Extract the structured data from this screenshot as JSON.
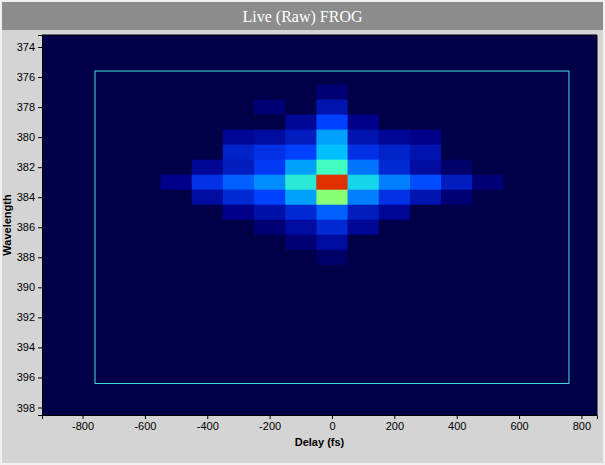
{
  "chart_data": {
    "type": "heatmap",
    "title": "Live (Raw) FROG",
    "xlabel": "Delay (fs)",
    "ylabel": "Wavelength",
    "xlim": [
      -930,
      850
    ],
    "ylim": [
      373.2,
      398.5
    ],
    "xticks": [
      -800,
      -600,
      -400,
      -200,
      0,
      200,
      400,
      600,
      800
    ],
    "yticks": [
      374,
      376,
      378,
      380,
      382,
      384,
      386,
      388,
      390,
      392,
      394,
      396,
      398
    ],
    "x": [
      -900,
      -800,
      -700,
      -600,
      -500,
      -400,
      -300,
      -200,
      -100,
      0,
      100,
      200,
      300,
      400,
      500,
      600,
      700,
      800
    ],
    "y": [
      373,
      374,
      375,
      376,
      377,
      378,
      379,
      380,
      381,
      382,
      383,
      384,
      385,
      386,
      387,
      388,
      389,
      390,
      391,
      392,
      393,
      394,
      395,
      396,
      397,
      398
    ],
    "zlim": [
      0,
      100
    ],
    "z": [
      [
        2,
        2,
        2,
        2,
        2,
        2,
        2,
        2,
        2,
        2,
        2,
        2,
        2,
        2,
        2,
        2,
        2,
        2
      ],
      [
        2,
        2,
        2,
        2,
        2,
        2,
        2,
        2,
        2,
        2,
        2,
        2,
        2,
        2,
        2,
        2,
        2,
        2
      ],
      [
        2,
        2,
        2,
        2,
        2,
        2,
        2,
        2,
        2,
        2,
        2,
        2,
        2,
        2,
        2,
        2,
        2,
        2
      ],
      [
        2,
        2,
        2,
        2,
        2,
        2,
        2,
        2,
        2,
        2,
        2,
        2,
        2,
        2,
        2,
        2,
        2,
        2
      ],
      [
        2,
        2,
        2,
        2,
        2,
        2,
        2,
        2,
        2,
        6,
        2,
        2,
        2,
        2,
        2,
        2,
        2,
        2
      ],
      [
        2,
        2,
        2,
        2,
        2,
        2,
        2,
        6,
        2,
        15,
        2,
        2,
        2,
        2,
        2,
        2,
        2,
        2
      ],
      [
        2,
        2,
        2,
        2,
        2,
        2,
        2,
        2,
        10,
        30,
        8,
        2,
        2,
        2,
        2,
        2,
        2,
        2
      ],
      [
        2,
        2,
        2,
        2,
        2,
        2,
        10,
        12,
        18,
        45,
        15,
        10,
        8,
        2,
        2,
        2,
        2,
        2
      ],
      [
        2,
        2,
        2,
        2,
        2,
        2,
        20,
        25,
        30,
        50,
        25,
        20,
        15,
        2,
        2,
        2,
        2,
        2
      ],
      [
        2,
        2,
        2,
        2,
        2,
        10,
        18,
        28,
        45,
        65,
        38,
        22,
        12,
        5,
        2,
        2,
        2,
        2
      ],
      [
        2,
        2,
        2,
        2,
        8,
        25,
        35,
        42,
        60,
        95,
        55,
        40,
        32,
        18,
        6,
        2,
        2,
        2
      ],
      [
        2,
        2,
        2,
        2,
        2,
        12,
        22,
        30,
        45,
        70,
        40,
        25,
        15,
        6,
        2,
        2,
        2,
        2
      ],
      [
        2,
        2,
        2,
        2,
        2,
        2,
        8,
        14,
        22,
        35,
        18,
        10,
        2,
        2,
        2,
        2,
        2,
        2
      ],
      [
        2,
        2,
        2,
        2,
        2,
        2,
        2,
        6,
        12,
        22,
        10,
        2,
        2,
        2,
        2,
        2,
        2,
        2
      ],
      [
        2,
        2,
        2,
        2,
        2,
        2,
        2,
        2,
        6,
        12,
        2,
        2,
        2,
        2,
        2,
        2,
        2,
        2
      ],
      [
        2,
        2,
        2,
        2,
        2,
        2,
        2,
        2,
        2,
        5,
        2,
        2,
        2,
        2,
        2,
        2,
        2,
        2
      ],
      [
        2,
        2,
        2,
        2,
        2,
        2,
        2,
        2,
        2,
        2,
        2,
        2,
        2,
        2,
        2,
        2,
        2,
        2
      ],
      [
        2,
        2,
        2,
        2,
        2,
        2,
        2,
        2,
        2,
        2,
        2,
        2,
        2,
        2,
        2,
        2,
        2,
        2
      ],
      [
        2,
        2,
        2,
        2,
        2,
        2,
        2,
        2,
        2,
        2,
        2,
        2,
        2,
        2,
        2,
        2,
        2,
        2
      ],
      [
        2,
        2,
        2,
        2,
        2,
        2,
        2,
        2,
        2,
        2,
        2,
        2,
        2,
        2,
        2,
        2,
        2,
        2
      ],
      [
        2,
        2,
        2,
        2,
        2,
        2,
        2,
        2,
        2,
        2,
        2,
        2,
        2,
        2,
        2,
        2,
        2,
        2
      ],
      [
        2,
        2,
        2,
        2,
        2,
        2,
        2,
        2,
        2,
        2,
        2,
        2,
        2,
        2,
        2,
        2,
        2,
        2
      ],
      [
        2,
        2,
        2,
        2,
        2,
        2,
        2,
        2,
        2,
        2,
        2,
        2,
        2,
        2,
        2,
        2,
        2,
        2
      ],
      [
        2,
        2,
        2,
        2,
        2,
        2,
        2,
        2,
        2,
        2,
        2,
        2,
        2,
        2,
        2,
        2,
        2,
        2
      ],
      [
        2,
        2,
        2,
        2,
        2,
        2,
        2,
        2,
        2,
        2,
        2,
        2,
        2,
        2,
        2,
        2,
        2,
        2
      ],
      [
        2,
        2,
        2,
        2,
        2,
        2,
        2,
        2,
        2,
        2,
        2,
        2,
        2,
        2,
        2,
        2,
        2,
        2
      ]
    ],
    "roi": {
      "delay": [
        -760,
        760
      ],
      "wavelength": [
        375.6,
        396.4
      ]
    }
  }
}
